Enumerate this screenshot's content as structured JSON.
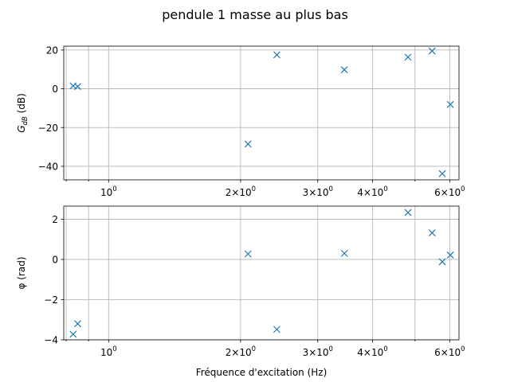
{
  "chart_data": {
    "type": "scatter",
    "title": "pendule 1 masse au plus bas",
    "x_scale": "log",
    "xlabel": "Fréquence d'excitation (Hz)",
    "x_tick_labels": [
      "10^0",
      "2×10^0",
      "3×10^0",
      "4×10^0",
      "6×10^0"
    ],
    "marker": "x",
    "color": "#1f77b4",
    "grid": true,
    "subplots": [
      {
        "ylabel": "G_dB (dB)",
        "y_ticks": [
          20,
          0,
          -20,
          -40
        ],
        "y_tick_labels": [
          "20",
          "0",
          "−20",
          "−40"
        ],
        "ylim": [
          -47,
          22
        ],
        "points": [
          {
            "x": 0.83,
            "y": 1.5
          },
          {
            "x": 0.85,
            "y": 1.2
          },
          {
            "x": 2.08,
            "y": -28.5
          },
          {
            "x": 2.42,
            "y": 17.5
          },
          {
            "x": 3.45,
            "y": 9.8
          },
          {
            "x": 4.82,
            "y": 16.3
          },
          {
            "x": 5.47,
            "y": 19.5
          },
          {
            "x": 5.77,
            "y": -43.8
          },
          {
            "x": 6.02,
            "y": -8.1
          }
        ]
      },
      {
        "ylabel": "φ (rad)",
        "y_ticks": [
          2,
          0,
          -2,
          -4
        ],
        "y_tick_labels": [
          "2",
          "0",
          "−2",
          "−4"
        ],
        "ylim": [
          -4.0,
          2.65
        ],
        "points": [
          {
            "x": 0.83,
            "y": -3.72
          },
          {
            "x": 0.85,
            "y": -3.2
          },
          {
            "x": 2.08,
            "y": 0.27
          },
          {
            "x": 2.42,
            "y": -3.48
          },
          {
            "x": 3.45,
            "y": 0.3
          },
          {
            "x": 4.82,
            "y": 2.33
          },
          {
            "x": 5.47,
            "y": 1.32
          },
          {
            "x": 5.77,
            "y": -0.12
          },
          {
            "x": 6.02,
            "y": 0.22
          }
        ]
      }
    ]
  }
}
